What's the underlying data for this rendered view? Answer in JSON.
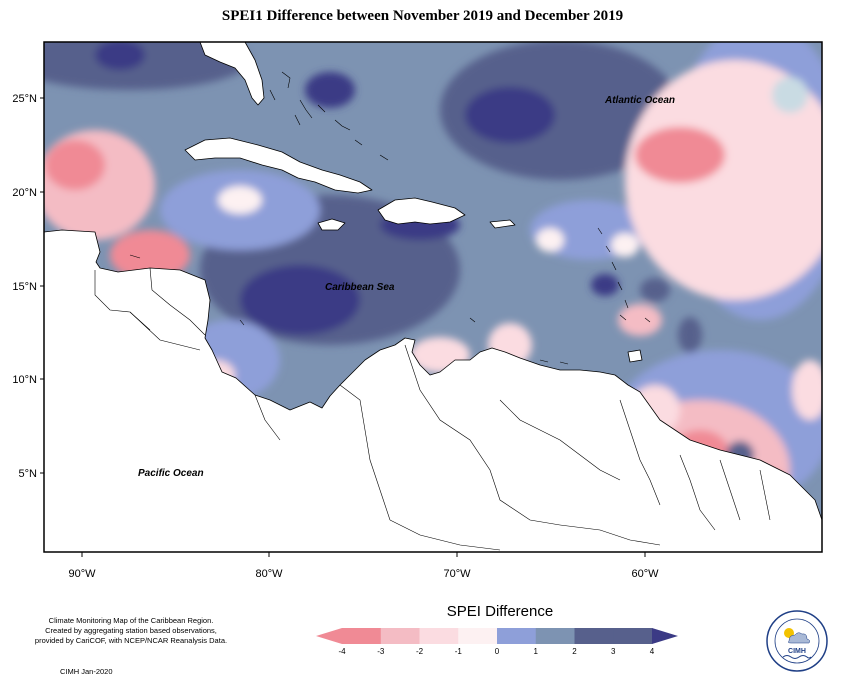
{
  "title": "SPEI1 Difference between November 2019 and December 2019",
  "map": {
    "lat_ticks": [
      "25°N",
      "20°N",
      "15°N",
      "10°N",
      "5°N"
    ],
    "lon_ticks": [
      "90°W",
      "80°W",
      "70°W",
      "60°W"
    ],
    "labels": {
      "atlantic": "Atlantic Ocean",
      "caribbean": "Caribbean Sea",
      "pacific": "Pacific Ocean"
    }
  },
  "legend": {
    "title": "SPEI Difference",
    "ticks": [
      "-4",
      "-3",
      "-2",
      "-1",
      "0",
      "1",
      "2",
      "3",
      "4"
    ],
    "colors": [
      "#f08a95",
      "#f4bcc4",
      "#fbdce1",
      "#fdf1f2",
      "#c9dbe3",
      "#8e9fd9",
      "#7d93b2",
      "#57608c",
      "#3b3a85"
    ]
  },
  "credits": {
    "line1": "Climate Monitoring Map of the Caribbean Region.",
    "line2": "Created by aggregating station based observations,",
    "line3": "provided by CariCOF, with NCEP/NCAR Reanalysis Data.",
    "org": "CIMH Jan-2020"
  },
  "logo": {
    "text": "CIMH"
  }
}
